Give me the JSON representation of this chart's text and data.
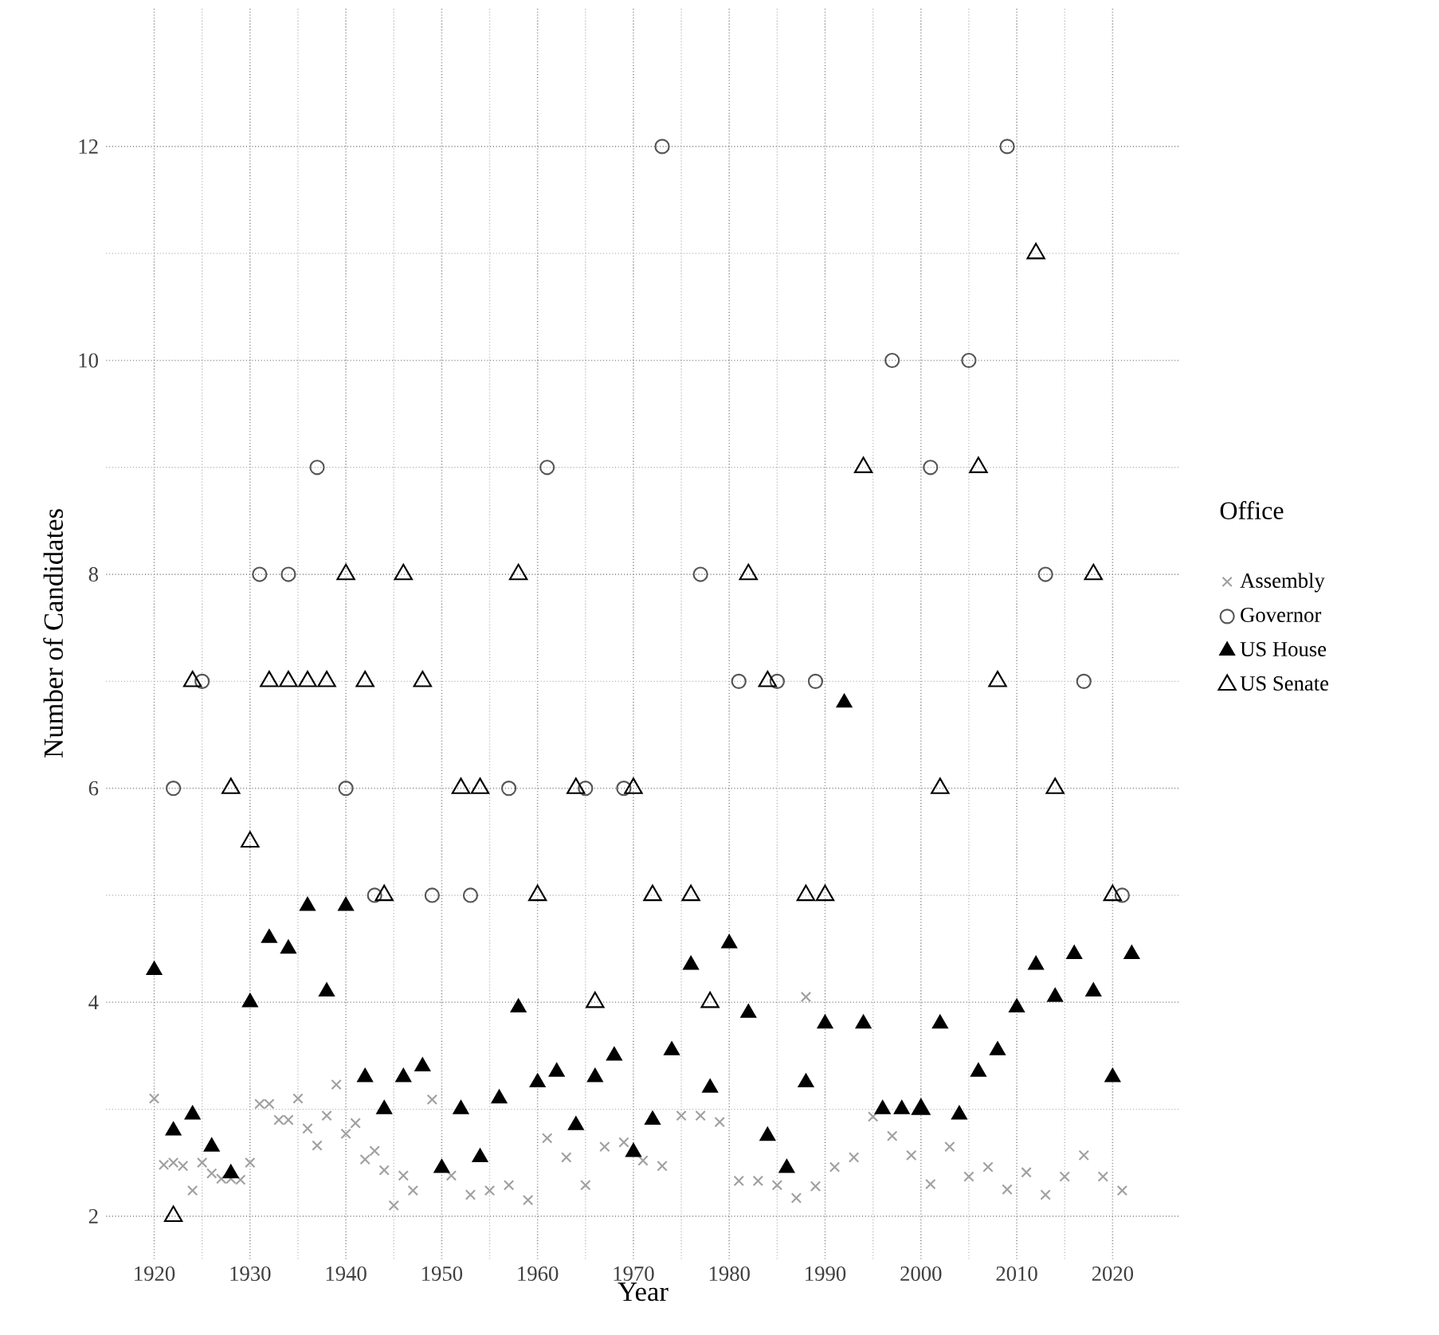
{
  "chart_data": {
    "type": "scatter",
    "xlabel": "Year",
    "ylabel": "Number of Candidates",
    "legend_title": "Office",
    "legend": "right",
    "grid": true,
    "xlim": [
      1915,
      2027
    ],
    "ylim": [
      1.6,
      13.3
    ],
    "xticks": [
      1920,
      1930,
      1940,
      1950,
      1960,
      1970,
      1980,
      1990,
      2000,
      2010,
      2020
    ],
    "yticks": [
      2,
      4,
      6,
      8,
      10,
      12
    ],
    "series": [
      {
        "name": "Assembly",
        "color": "#a0a0a0",
        "marker": "cross",
        "x": [
          1920,
          1921,
          1922,
          1923,
          1924,
          1925,
          1926,
          1927,
          1928,
          1929,
          1930,
          1931,
          1932,
          1933,
          1934,
          1935,
          1936,
          1937,
          1938,
          1939,
          1940,
          1941,
          1942,
          1943,
          1944,
          1945,
          1946,
          1947,
          1949,
          1951,
          1953,
          1955,
          1957,
          1959,
          1961,
          1963,
          1965,
          1967,
          1969,
          1971,
          1973,
          1975,
          1977,
          1979,
          1981,
          1983,
          1985,
          1987,
          1988,
          1989,
          1991,
          1993,
          1995,
          1997,
          1999,
          2001,
          2003,
          2005,
          2007,
          2009,
          2011,
          2013,
          2015,
          2017,
          2019,
          2021
        ],
        "values": [
          3.1,
          2.48,
          2.5,
          2.47,
          2.24,
          2.5,
          2.4,
          2.35,
          2.35,
          2.34,
          2.5,
          3.05,
          3.05,
          2.9,
          2.9,
          3.1,
          2.82,
          2.66,
          2.94,
          3.23,
          2.77,
          2.87,
          2.53,
          2.61,
          2.43,
          2.1,
          2.38,
          2.24,
          3.09,
          2.38,
          2.2,
          2.24,
          2.29,
          2.15,
          2.73,
          2.55,
          2.29,
          2.65,
          2.69,
          2.52,
          2.47,
          2.94,
          2.94,
          2.88,
          2.33,
          2.33,
          2.29,
          2.17,
          4.05,
          2.28,
          2.46,
          2.55,
          2.93,
          2.75,
          2.57,
          2.3,
          2.65,
          2.37,
          2.46,
          2.25,
          2.41,
          2.2,
          2.37,
          2.57,
          2.37,
          2.24
        ]
      },
      {
        "name": "Governor",
        "color": "#555555",
        "marker": "circle-open",
        "x": [
          1922,
          1925,
          1931,
          1934,
          1937,
          1940,
          1943,
          1949,
          1953,
          1957,
          1961,
          1965,
          1969,
          1973,
          1977,
          1981,
          1985,
          1989,
          1997,
          2001,
          2005,
          2009,
          2013,
          2017,
          2021
        ],
        "values": [
          6,
          7,
          8,
          8,
          9,
          6,
          5,
          5,
          5,
          6,
          9,
          6,
          6,
          12,
          8,
          7,
          7,
          7,
          10,
          9,
          10,
          12,
          8,
          7,
          5
        ]
      },
      {
        "name": "US House",
        "color": "#000000",
        "marker": "triangle",
        "x": [
          1920,
          1922,
          1924,
          1926,
          1928,
          1930,
          1932,
          1934,
          1936,
          1938,
          1940,
          1942,
          1944,
          1946,
          1948,
          1950,
          1952,
          1954,
          1956,
          1958,
          1960,
          1962,
          1964,
          1966,
          1968,
          1970,
          1972,
          1974,
          1976,
          1978,
          1980,
          1982,
          1984,
          1986,
          1988,
          1990,
          1992,
          1994,
          1996,
          1998,
          2000,
          2002,
          2004,
          2006,
          2008,
          2010,
          2012,
          2014,
          2016,
          2018,
          2020,
          2022
        ],
        "values": [
          4.3,
          2.8,
          2.95,
          2.65,
          2.4,
          4.0,
          4.6,
          4.5,
          4.9,
          4.1,
          4.9,
          3.3,
          3.0,
          3.3,
          3.4,
          2.45,
          3.0,
          2.55,
          3.1,
          3.95,
          3.25,
          3.35,
          2.85,
          3.3,
          3.5,
          2.6,
          2.9,
          3.55,
          4.35,
          3.2,
          4.55,
          3.9,
          2.75,
          2.45,
          3.25,
          3.8,
          6.8,
          3.8,
          3.0,
          3.0,
          3.0,
          3.8,
          2.95,
          3.35,
          3.55,
          3.95,
          4.35,
          4.05,
          4.45,
          4.1,
          3.3,
          4.45
        ]
      },
      {
        "name": "US Senate",
        "color": "#000000",
        "marker": "triangle-open",
        "x": [
          1922,
          1924,
          1928,
          1930,
          1932,
          1934,
          1936,
          1938,
          1940,
          1942,
          1944,
          1946,
          1948,
          1952,
          1954,
          1958,
          1960,
          1964,
          1966,
          1970,
          1972,
          1976,
          1978,
          1982,
          1984,
          1988,
          1990,
          1994,
          2000,
          2002,
          2006,
          2008,
          2012,
          2014,
          2018,
          2020
        ],
        "values": [
          2,
          7,
          6,
          5.5,
          7,
          7,
          7,
          7,
          8,
          7,
          5,
          8,
          7,
          6,
          6,
          8,
          5,
          6,
          4,
          6,
          5,
          5,
          4,
          8,
          7,
          5,
          5,
          9,
          3,
          6,
          9,
          7,
          11,
          6,
          8,
          5
        ]
      }
    ]
  }
}
